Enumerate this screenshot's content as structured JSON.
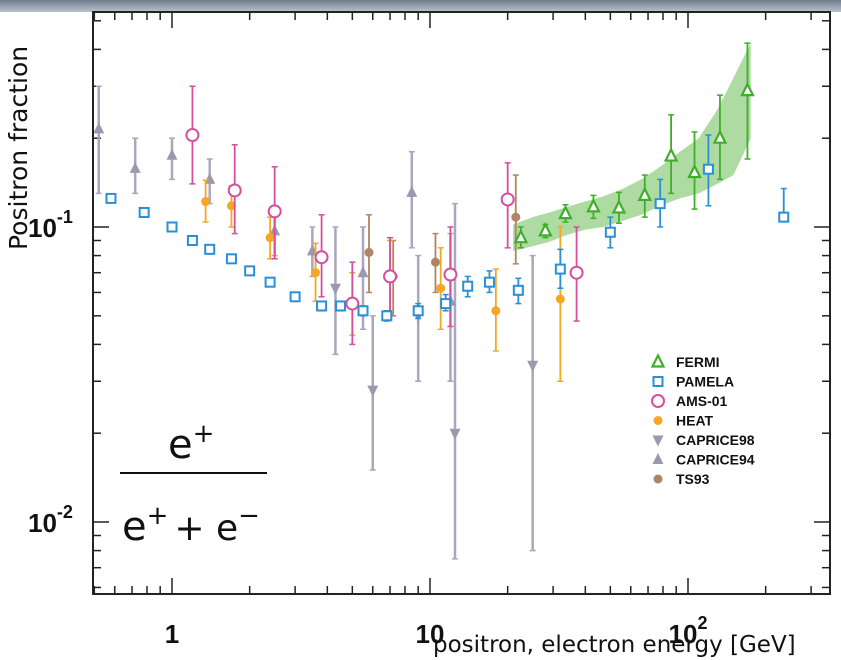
{
  "chart_data": {
    "type": "scatter",
    "title": "",
    "xlabel": "positron, electron energy [GeV]",
    "ylabel": "Positron fraction",
    "xscale": "log",
    "yscale": "log",
    "xlim": [
      0.5,
      300
    ],
    "ylim": [
      0.006,
      0.5
    ],
    "xticks": [
      {
        "label": "1"
      },
      {
        "label": "10"
      },
      {
        "label": "10",
        "sup": "2"
      }
    ],
    "yticks": [
      {
        "label": "10",
        "sup": "-1"
      },
      {
        "label": "10",
        "sup": "-2"
      }
    ],
    "legend_position": "bottom-right",
    "formula": {
      "numerator": "e+",
      "denominator": "e+ + e−"
    },
    "band": {
      "series": "FERMI",
      "color": "#4caf2f",
      "x": [
        21,
        25,
        29,
        34,
        40,
        47,
        56,
        66,
        78,
        93,
        110,
        130,
        150,
        175
      ],
      "lower": [
        0.083,
        0.086,
        0.089,
        0.094,
        0.098,
        0.1,
        0.105,
        0.11,
        0.118,
        0.125,
        0.13,
        0.14,
        0.15,
        0.2
      ],
      "upper": [
        0.102,
        0.108,
        0.112,
        0.117,
        0.122,
        0.127,
        0.135,
        0.145,
        0.16,
        0.18,
        0.2,
        0.25,
        0.32,
        0.42
      ]
    },
    "series": [
      {
        "name": "FERMI",
        "marker": "triangle-up-open",
        "color": "#3fae2a",
        "points": [
          [
            22.5,
            0.092,
            0.085,
            0.1
          ],
          [
            28,
            0.097,
            0.092,
            0.102
          ],
          [
            33.5,
            0.111,
            0.104,
            0.119
          ],
          [
            43,
            0.117,
            0.107,
            0.128
          ],
          [
            54,
            0.116,
            0.103,
            0.131
          ],
          [
            68,
            0.128,
            0.108,
            0.15
          ],
          [
            86,
            0.174,
            0.13,
            0.24
          ],
          [
            106,
            0.153,
            0.115,
            0.21
          ],
          [
            133,
            0.2,
            0.145,
            0.28
          ],
          [
            170,
            0.29,
            0.17,
            0.42
          ]
        ]
      },
      {
        "name": "PAMELA",
        "marker": "square-open",
        "color": "#2b8fd6",
        "points": [
          [
            0.58,
            0.125,
            0.123,
            0.127
          ],
          [
            0.78,
            0.112,
            0.11,
            0.114
          ],
          [
            1.0,
            0.1,
            0.098,
            0.102
          ],
          [
            1.2,
            0.09,
            0.088,
            0.092
          ],
          [
            1.4,
            0.084,
            0.082,
            0.086
          ],
          [
            1.7,
            0.078,
            0.076,
            0.08
          ],
          [
            2.0,
            0.071,
            0.069,
            0.073
          ],
          [
            2.4,
            0.065,
            0.063,
            0.067
          ],
          [
            3.0,
            0.058,
            0.056,
            0.06
          ],
          [
            3.8,
            0.054,
            0.052,
            0.056
          ],
          [
            4.5,
            0.054,
            0.052,
            0.056
          ],
          [
            5.5,
            0.052,
            0.05,
            0.054
          ],
          [
            6.8,
            0.05,
            0.048,
            0.052
          ],
          [
            9.0,
            0.052,
            0.049,
            0.055
          ],
          [
            11.5,
            0.055,
            0.052,
            0.059
          ],
          [
            14,
            0.063,
            0.058,
            0.068
          ],
          [
            17,
            0.065,
            0.06,
            0.071
          ],
          [
            22,
            0.061,
            0.055,
            0.067
          ],
          [
            32,
            0.072,
            0.062,
            0.084
          ],
          [
            50,
            0.096,
            0.085,
            0.108
          ],
          [
            78,
            0.12,
            0.1,
            0.145
          ],
          [
            120,
            0.157,
            0.118,
            0.205
          ],
          [
            235,
            0.108,
            0.108,
            0.135
          ]
        ]
      },
      {
        "name": "AMS-01",
        "marker": "circle-open",
        "color": "#d64e9e",
        "points": [
          [
            1.2,
            0.205,
            0.14,
            0.3
          ],
          [
            1.75,
            0.133,
            0.095,
            0.19
          ],
          [
            2.5,
            0.113,
            0.078,
            0.16
          ],
          [
            3.8,
            0.079,
            0.058,
            0.11
          ],
          [
            5,
            0.055,
            0.04,
            0.076
          ],
          [
            7,
            0.068,
            0.05,
            0.092
          ],
          [
            12,
            0.069,
            0.046,
            0.1
          ],
          [
            20,
            0.124,
            0.085,
            0.165
          ],
          [
            37,
            0.07,
            0.048,
            0.1
          ]
        ]
      },
      {
        "name": "HEAT",
        "marker": "circle-filled",
        "color": "#f5a623",
        "points": [
          [
            1.35,
            0.122,
            0.104,
            0.144
          ],
          [
            1.7,
            0.118,
            0.1,
            0.138
          ],
          [
            2.4,
            0.092,
            0.078,
            0.108
          ],
          [
            3.6,
            0.07,
            0.056,
            0.088
          ],
          [
            5,
            0.055,
            0.043,
            0.07
          ],
          [
            7,
            0.068,
            0.052,
            0.09
          ],
          [
            11,
            0.062,
            0.045,
            0.085
          ],
          [
            18,
            0.052,
            0.038,
            0.072
          ],
          [
            32,
            0.057,
            0.03,
            0.1
          ]
        ]
      },
      {
        "name": "CAPRICE98",
        "marker": "triangle-down-filled",
        "color": "#9b98b0",
        "points": [
          [
            4.3,
            0.062,
            0.037,
            0.1
          ],
          [
            6.0,
            0.028,
            0.015,
            0.05
          ],
          [
            9.0,
            0.05,
            0.03,
            0.08
          ],
          [
            12.5,
            0.02,
            0.0075,
            0.12
          ],
          [
            25,
            0.034,
            0.008,
            0.08
          ]
        ]
      },
      {
        "name": "CAPRICE94",
        "marker": "triangle-up-filled",
        "color": "#9b98b0",
        "points": [
          [
            0.52,
            0.215,
            0.13,
            0.3
          ],
          [
            0.72,
            0.158,
            0.13,
            0.2
          ],
          [
            1.0,
            0.175,
            0.145,
            0.2
          ],
          [
            1.4,
            0.145,
            0.12,
            0.17
          ],
          [
            2.5,
            0.097,
            0.08,
            0.115
          ],
          [
            3.5,
            0.083,
            0.068,
            0.1
          ],
          [
            5.5,
            0.07,
            0.045,
            0.1
          ],
          [
            8.5,
            0.131,
            0.085,
            0.18
          ],
          [
            12,
            0.056,
            0.03,
            0.095
          ]
        ]
      },
      {
        "name": "TS93",
        "marker": "circle-filled",
        "color": "#b08567",
        "points": [
          [
            5.8,
            0.082,
            0.06,
            0.11
          ],
          [
            7.2,
            0.068,
            0.05,
            0.09
          ],
          [
            10.5,
            0.076,
            0.06,
            0.095
          ],
          [
            21.5,
            0.108,
            0.075,
            0.15
          ]
        ]
      }
    ]
  }
}
